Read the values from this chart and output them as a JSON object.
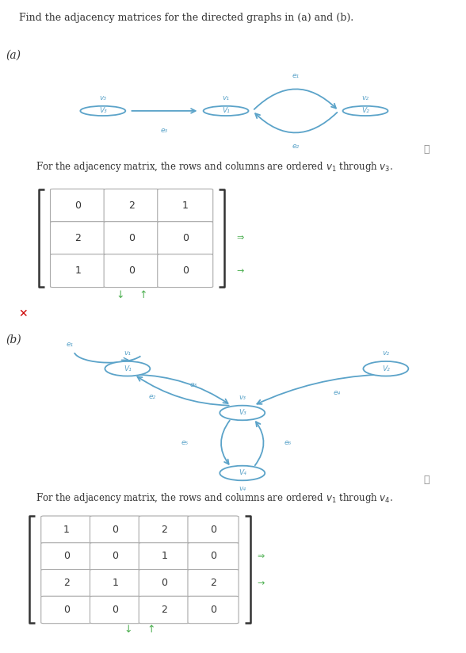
{
  "title": "Find the adjacency matrices for the directed graphs in (a) and (b).",
  "label_a": "(a)",
  "label_b": "(b)",
  "graph_color": "#5ba3c9",
  "vertex_edge_color": "#5ba3c9",
  "text_color": "#333333",
  "info_icon_color": "#888888",
  "x_mark_color": "#cc0000",
  "sort_arrow_color": "#4caf50",
  "bg_color": "white",
  "font_size_title": 9.0,
  "font_size_label": 10,
  "font_size_matrix": 9,
  "font_size_text": 8.5,
  "font_size_vertex": 6.5,
  "font_size_edge": 6.5,
  "graph_a": {
    "matrix": [
      [
        0,
        2,
        1
      ],
      [
        2,
        0,
        0
      ],
      [
        1,
        0,
        0
      ]
    ]
  },
  "graph_b": {
    "matrix": [
      [
        1,
        0,
        2,
        0
      ],
      [
        0,
        0,
        1,
        0
      ],
      [
        2,
        1,
        0,
        2
      ],
      [
        0,
        0,
        2,
        0
      ]
    ]
  }
}
